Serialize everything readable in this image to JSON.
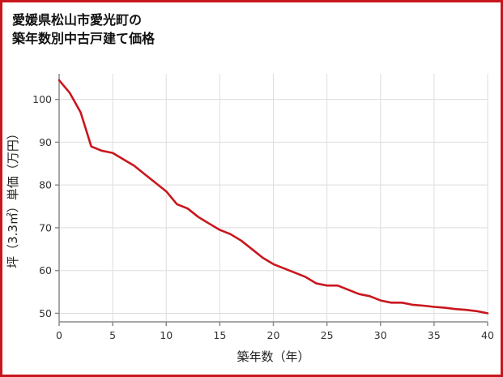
{
  "title": {
    "line1": "愛媛県松山市愛光町の",
    "line2": "築年数別中古戸建て価格"
  },
  "chart_data": {
    "type": "line",
    "title": "愛媛県松山市愛光町の築年数別中古戸建て価格",
    "xlabel": "築年数（年）",
    "ylabel": "坪（3.3㎡）単価（万円）",
    "x": [
      0,
      1,
      2,
      3,
      4,
      5,
      6,
      7,
      8,
      9,
      10,
      11,
      12,
      13,
      14,
      15,
      16,
      17,
      18,
      19,
      20,
      21,
      22,
      23,
      24,
      25,
      26,
      27,
      28,
      29,
      30,
      31,
      32,
      33,
      34,
      35,
      36,
      37,
      38,
      39,
      40
    ],
    "values": [
      104.5,
      101.5,
      97,
      89,
      88,
      87.5,
      86,
      84.5,
      82.5,
      80.5,
      78.5,
      75.5,
      74.5,
      72.5,
      71,
      69.5,
      68.5,
      67,
      65,
      63,
      61.5,
      60.5,
      59.5,
      58.5,
      57,
      56.5,
      56.5,
      55.5,
      54.5,
      54,
      53,
      52.5,
      52.5,
      52,
      51.8,
      51.5,
      51.3,
      51,
      50.8,
      50.5,
      50
    ],
    "xlim": [
      0,
      40
    ],
    "ylim": [
      48,
      106
    ],
    "x_ticks": [
      0,
      5,
      10,
      15,
      20,
      25,
      30,
      35,
      40
    ],
    "y_ticks": [
      50,
      60,
      70,
      80,
      90,
      100
    ],
    "grid": true,
    "legend": "none",
    "line_color": "#c9161d",
    "grid_color": "#dedede",
    "axis_color": "#8a8a8a",
    "text_color": "#333333",
    "border_color": "#c9161d"
  }
}
